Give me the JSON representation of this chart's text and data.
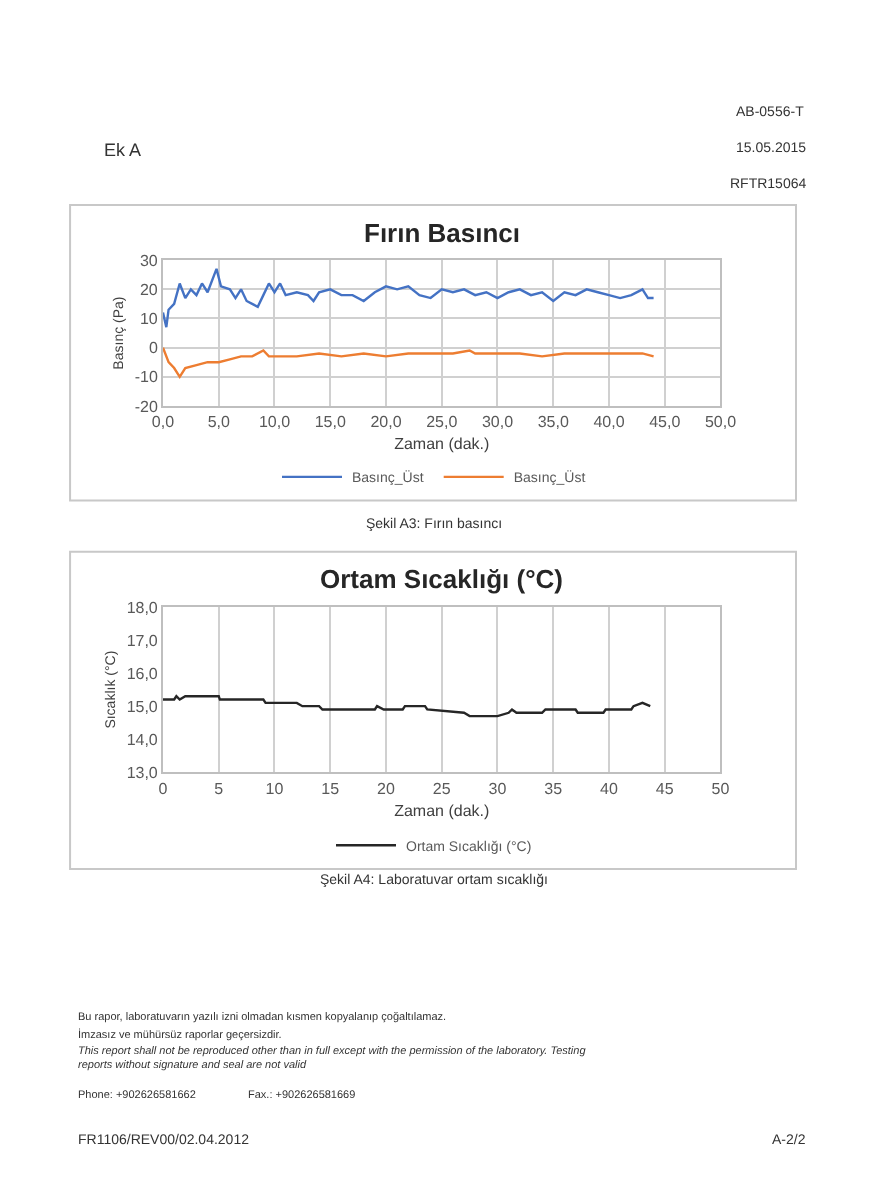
{
  "chart_data": [
    {
      "type": "line",
      "title": "Fırın Basıncı",
      "xlabel": "Zaman (dak.)",
      "ylabel": "Basınç (Pa)",
      "xlim": [
        0,
        50
      ],
      "xticks": [
        {
          "value": 0,
          "label": "0,0"
        },
        {
          "value": 5,
          "label": "5,0"
        },
        {
          "value": 10,
          "label": "10,0"
        },
        {
          "value": 15,
          "label": "15,0"
        },
        {
          "value": 20,
          "label": "20,0"
        },
        {
          "value": 25,
          "label": "25,0"
        },
        {
          "value": 30,
          "label": "30,0"
        },
        {
          "value": 35,
          "label": "35,0"
        },
        {
          "value": 40,
          "label": "40,0"
        },
        {
          "value": 45,
          "label": "45,0"
        },
        {
          "value": 50,
          "label": "50,0"
        }
      ],
      "ylim": [
        -20,
        30
      ],
      "yticks": [
        -20,
        -10,
        0,
        10,
        20,
        30
      ],
      "grid": true,
      "legend": "bottom",
      "marker": "none",
      "line_style": "solid",
      "series": [
        {
          "name": "Basınç_Üst",
          "color": "#4472c4",
          "x": [
            0,
            0.3,
            0.5,
            1,
            1.5,
            2,
            2.5,
            3,
            3.5,
            4,
            4.8,
            5.2,
            6,
            6.5,
            7,
            7.5,
            8,
            8.5,
            9,
            9.5,
            10,
            10.5,
            11,
            12,
            13,
            13.5,
            14,
            15,
            16,
            17,
            18,
            19,
            20,
            21,
            22,
            23,
            24,
            25,
            26,
            27,
            28,
            29,
            30,
            31,
            32,
            33,
            34,
            35,
            36,
            37,
            38,
            39,
            40,
            41,
            42,
            43,
            43.5,
            44
          ],
          "values": [
            12,
            7,
            13,
            15,
            22,
            17,
            20,
            18,
            22,
            19,
            27,
            21,
            20,
            17,
            20,
            16,
            15,
            14,
            18,
            22,
            19,
            22,
            18,
            19,
            18,
            16,
            19,
            20,
            18,
            18,
            16,
            19,
            21,
            20,
            21,
            18,
            17,
            20,
            19,
            20,
            18,
            19,
            17,
            19,
            20,
            18,
            19,
            16,
            19,
            18,
            20,
            19,
            18,
            17,
            18,
            20,
            17,
            17
          ]
        },
        {
          "name": "Basınç_Üst",
          "color": "#ed7d31",
          "x": [
            0,
            0.5,
            1,
            1.5,
            2,
            3,
            4,
            5,
            6,
            7,
            8,
            9,
            9.5,
            10,
            12,
            14,
            16,
            18,
            20,
            22,
            24,
            26,
            27.5,
            28,
            30,
            32,
            34,
            36,
            38,
            40,
            42,
            43,
            44
          ],
          "values": [
            0,
            -5,
            -7,
            -10,
            -7,
            -6,
            -5,
            -5,
            -4,
            -3,
            -3,
            -1,
            -3,
            -3,
            -3,
            -2,
            -3,
            -2,
            -3,
            -2,
            -2,
            -2,
            -1,
            -2,
            -2,
            -2,
            -3,
            -2,
            -2,
            -2,
            -2,
            -2,
            -3
          ]
        }
      ],
      "annotations": [
        "Şekil A3: Fırın basıncı",
        "Ek A",
        "AB-0556-T",
        "15.05.2015",
        "RFTR15064"
      ]
    },
    {
      "type": "line",
      "title": "Ortam Sıcaklığı (°C)",
      "xlabel": "Zaman (dak.)",
      "ylabel": "Sıcaklık (°C)",
      "xlim": [
        0,
        50
      ],
      "xticks": [
        0,
        5,
        10,
        15,
        20,
        25,
        30,
        35,
        40,
        45,
        50
      ],
      "ylim": [
        13,
        18
      ],
      "yticks": [
        {
          "value": 13,
          "label": "13,0"
        },
        {
          "value": 14,
          "label": "14,0"
        },
        {
          "value": 15,
          "label": "15,0"
        },
        {
          "value": 16,
          "label": "16,0"
        },
        {
          "value": 17,
          "label": "17,0"
        },
        {
          "value": 18,
          "label": "18,0"
        }
      ],
      "grid": "x",
      "legend": "bottom",
      "marker": "none",
      "line_style": "solid",
      "series": [
        {
          "name": "Ortam Sıcaklığı (°C)",
          "color": "#262626",
          "x": [
            0,
            1,
            1.2,
            1.5,
            2,
            5,
            5.1,
            9,
            9.2,
            12,
            12.5,
            14,
            14.3,
            19,
            19.2,
            19.8,
            21.5,
            21.7,
            23.5,
            23.7,
            27,
            27.5,
            30,
            31,
            31.3,
            31.7,
            34,
            34.3,
            37,
            37.2,
            39.5,
            39.7,
            42,
            42.2,
            43,
            43.7
          ],
          "values": [
            15.2,
            15.2,
            15.3,
            15.2,
            15.3,
            15.3,
            15.2,
            15.2,
            15.1,
            15.1,
            15.0,
            15.0,
            14.9,
            14.9,
            15.0,
            14.9,
            14.9,
            15.0,
            15.0,
            14.9,
            14.8,
            14.7,
            14.7,
            14.8,
            14.9,
            14.8,
            14.8,
            14.9,
            14.9,
            14.8,
            14.8,
            14.9,
            14.9,
            15.0,
            15.1,
            15.0
          ]
        }
      ],
      "annotations": [
        "Şekil A4: Laboratuvar ortam sıcaklığı",
        "Bu rapor, laboratuvarın yazılı izni olmadan kısmen kopyalanıp çoğaltılamaz.",
        "İmzasız ve mühürsüz raporlar geçersizdir.",
        "This report shall not be reproduced other than in full except with the permission of the laboratory. Testing reports without signature and seal are not valid",
        "Phone: +902626581662",
        "Fax.: +902626581669",
        "FR1106/REV00/02.04.2012",
        "A-2/2"
      ]
    }
  ]
}
